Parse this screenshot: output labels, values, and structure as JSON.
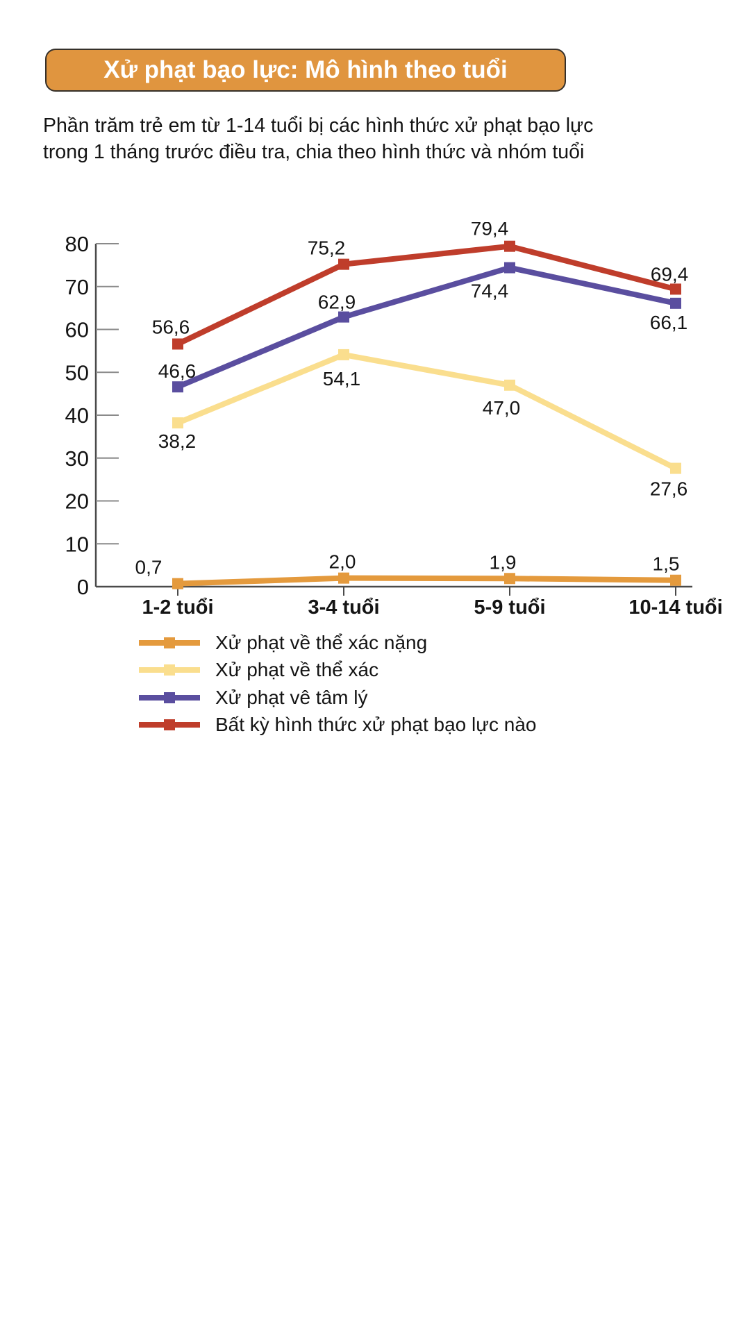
{
  "header": {
    "title": "Xử phạt bạo lực: Mô hình theo tuổi",
    "banner_color": "#E0953F",
    "title_color": "#ffffff"
  },
  "subtitle_lines": [
    "Phần trăm trẻ em từ 1-14 tuổi bị các hình thức xử phạt bạo lực",
    "trong 1 tháng trước điều tra, chia theo hình thức và nhóm tuổi"
  ],
  "chart_data": {
    "type": "line",
    "categories": [
      "1-2 tuổi",
      "3-4 tuổi",
      "5-9 tuổi",
      "10-14 tuổi"
    ],
    "xlabel": "",
    "ylabel": "",
    "ylim": [
      0,
      80
    ],
    "yticks": [
      "0",
      "10",
      "20",
      "30",
      "40",
      "50",
      "60",
      "70",
      "80"
    ],
    "grid": false,
    "legend_position": "bottom-left",
    "decimal_separator": ",",
    "series": [
      {
        "name": "Xử phạt về thể xác nặng",
        "color": "#E49A3D",
        "values": [
          0.7,
          2.0,
          1.9,
          1.5
        ],
        "labels": [
          "0,7",
          "2,0",
          "1,9",
          "1,5"
        ],
        "label_offsets": [
          [
            -42,
            -14
          ],
          [
            -2,
            -14
          ],
          [
            -10,
            -14
          ],
          [
            -14,
            -14
          ]
        ]
      },
      {
        "name": "Xử phạt về thể xác",
        "color": "#FADE8E",
        "values": [
          38.2,
          54.1,
          47.0,
          27.6
        ],
        "labels": [
          "38,2",
          "54,1",
          "47,0",
          "27,6"
        ],
        "label_offsets": [
          [
            -1,
            36
          ],
          [
            -3,
            44
          ],
          [
            -12,
            42
          ],
          [
            -10,
            39
          ]
        ]
      },
      {
        "name": "Xử phạt vê tâm lý",
        "color": "#5A4E9F",
        "values": [
          46.6,
          62.9,
          74.4,
          66.1
        ],
        "labels": [
          "46,6",
          "62,9",
          "74,4",
          "66,1"
        ],
        "label_offsets": [
          [
            -1,
            -13
          ],
          [
            -10,
            -12
          ],
          [
            -29,
            43
          ],
          [
            -10,
            37
          ]
        ]
      },
      {
        "name": "Bất kỳ hình thức xử phạt bạo lực nào",
        "color": "#BF3D2B",
        "values": [
          56.6,
          75.2,
          79.4,
          69.4
        ],
        "labels": [
          "56,6",
          "75,2",
          "79,4",
          "69,4"
        ],
        "label_offsets": [
          [
            -10,
            -15
          ],
          [
            -25,
            -14
          ],
          [
            -29,
            -16
          ],
          [
            -9,
            -12
          ]
        ]
      }
    ]
  }
}
